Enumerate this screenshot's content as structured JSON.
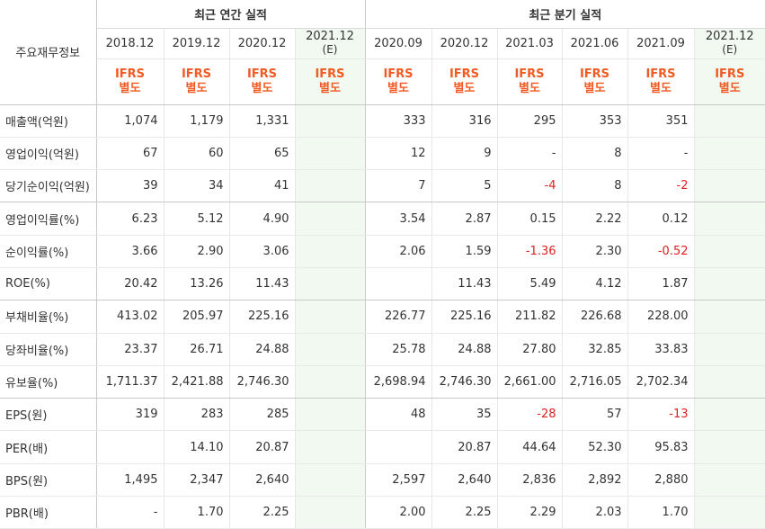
{
  "header": {
    "row_label": "주요재무정보",
    "annual_group": "최근 연간 실적",
    "quarter_group": "최근 분기 실적",
    "periods": [
      {
        "date": "2018.12",
        "sub": "",
        "basis_top": "IFRS",
        "basis_bottom": "별도",
        "estimate": false
      },
      {
        "date": "2019.12",
        "sub": "",
        "basis_top": "IFRS",
        "basis_bottom": "별도",
        "estimate": false
      },
      {
        "date": "2020.12",
        "sub": "",
        "basis_top": "IFRS",
        "basis_bottom": "별도",
        "estimate": false
      },
      {
        "date": "2021.12",
        "sub": "(E)",
        "basis_top": "IFRS",
        "basis_bottom": "별도",
        "estimate": true
      },
      {
        "date": "2020.09",
        "sub": "",
        "basis_top": "IFRS",
        "basis_bottom": "별도",
        "estimate": false
      },
      {
        "date": "2020.12",
        "sub": "",
        "basis_top": "IFRS",
        "basis_bottom": "별도",
        "estimate": false
      },
      {
        "date": "2021.03",
        "sub": "",
        "basis_top": "IFRS",
        "basis_bottom": "별도",
        "estimate": false
      },
      {
        "date": "2021.06",
        "sub": "",
        "basis_top": "IFRS",
        "basis_bottom": "별도",
        "estimate": false
      },
      {
        "date": "2021.09",
        "sub": "",
        "basis_top": "IFRS",
        "basis_bottom": "별도",
        "estimate": false
      },
      {
        "date": "2021.12",
        "sub": "(E)",
        "basis_top": "IFRS",
        "basis_bottom": "별도",
        "estimate": true
      }
    ]
  },
  "rows": [
    {
      "label": "매출액(억원)",
      "values": [
        "1,074",
        "1,179",
        "1,331",
        "",
        "333",
        "316",
        "295",
        "353",
        "351",
        ""
      ]
    },
    {
      "label": "영업이익(억원)",
      "values": [
        "67",
        "60",
        "65",
        "",
        "12",
        "9",
        "-",
        "8",
        "-",
        ""
      ]
    },
    {
      "label": "당기순이익(억원)",
      "values": [
        "39",
        "34",
        "41",
        "",
        "7",
        "5",
        "-4",
        "8",
        "-2",
        ""
      ]
    },
    {
      "label": "영업이익률(%)",
      "values": [
        "6.23",
        "5.12",
        "4.90",
        "",
        "3.54",
        "2.87",
        "0.15",
        "2.22",
        "0.12",
        ""
      ]
    },
    {
      "label": "순이익률(%)",
      "values": [
        "3.66",
        "2.90",
        "3.06",
        "",
        "2.06",
        "1.59",
        "-1.36",
        "2.30",
        "-0.52",
        ""
      ]
    },
    {
      "label": "ROE(%)",
      "values": [
        "20.42",
        "13.26",
        "11.43",
        "",
        "",
        "11.43",
        "5.49",
        "4.12",
        "1.87",
        ""
      ]
    },
    {
      "label": "부채비율(%)",
      "values": [
        "413.02",
        "205.97",
        "225.16",
        "",
        "226.77",
        "225.16",
        "211.82",
        "226.68",
        "228.00",
        ""
      ]
    },
    {
      "label": "당좌비율(%)",
      "values": [
        "23.37",
        "26.71",
        "24.88",
        "",
        "25.78",
        "24.88",
        "27.80",
        "32.85",
        "33.83",
        ""
      ]
    },
    {
      "label": "유보율(%)",
      "values": [
        "1,711.37",
        "2,421.88",
        "2,746.30",
        "",
        "2,698.94",
        "2,746.30",
        "2,661.00",
        "2,716.05",
        "2,702.34",
        ""
      ]
    },
    {
      "label": "EPS(원)",
      "values": [
        "319",
        "283",
        "285",
        "",
        "48",
        "35",
        "-28",
        "57",
        "-13",
        ""
      ]
    },
    {
      "label": "PER(배)",
      "values": [
        "",
        "14.10",
        "20.87",
        "",
        "",
        "20.87",
        "44.64",
        "52.30",
        "95.83",
        ""
      ]
    },
    {
      "label": "BPS(원)",
      "values": [
        "1,495",
        "2,347",
        "2,640",
        "",
        "2,597",
        "2,640",
        "2,836",
        "2,892",
        "2,880",
        ""
      ]
    },
    {
      "label": "PBR(배)",
      "values": [
        "-",
        "1.70",
        "2.25",
        "",
        "2.00",
        "2.25",
        "2.29",
        "2.03",
        "1.70",
        ""
      ]
    }
  ],
  "colors": {
    "basis_text": "#f15a22",
    "negative_text": "#e02020",
    "estimate_background": "#f1f9f1"
  }
}
